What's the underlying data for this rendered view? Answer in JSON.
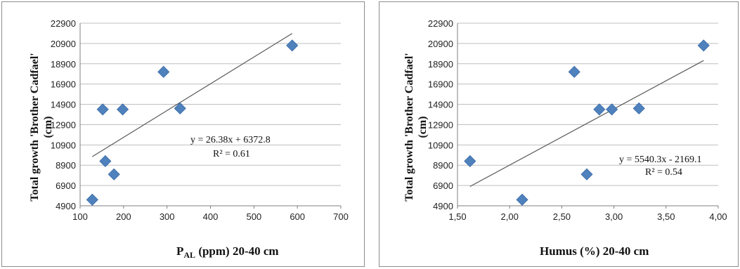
{
  "chart_data": [
    {
      "type": "scatter",
      "title": "",
      "xlabel": "P",
      "xlabel_sub": "AL",
      "xlabel_rest": " (ppm)  20-40 cm",
      "ylabel_line1": "Total growth 'Brother Cadfael'",
      "ylabel_line2": "(cm)",
      "xlim": [
        100,
        700
      ],
      "ylim": [
        4900,
        22900
      ],
      "x_ticks": [
        "100",
        "200",
        "300",
        "400",
        "500",
        "600",
        "700"
      ],
      "y_ticks": [
        "4900",
        "6900",
        "8900",
        "10900",
        "12900",
        "14900",
        "16900",
        "18900",
        "20900",
        "22900"
      ],
      "marker_color": "#4f81bd",
      "trend_color": "#595959",
      "points": [
        {
          "x": 128,
          "y": 5500
        },
        {
          "x": 152,
          "y": 14400
        },
        {
          "x": 158,
          "y": 9300
        },
        {
          "x": 178,
          "y": 8000
        },
        {
          "x": 198,
          "y": 14400
        },
        {
          "x": 292,
          "y": 18100
        },
        {
          "x": 330,
          "y": 14500
        },
        {
          "x": 588,
          "y": 20700
        }
      ],
      "trendline": {
        "slope": 26.38,
        "intercept": 6372.8,
        "x_start": 128,
        "x_end": 588
      },
      "equation": "y = 26.38x + 6372.8",
      "r2": "R² = 0.61"
    },
    {
      "type": "scatter",
      "title": "",
      "xlabel": "Humus (%)  20-40 cm",
      "ylabel_line1": "Total growth 'Brother Cadfael'",
      "ylabel_line2": "(cm)",
      "xlim": [
        1.5,
        4.0
      ],
      "ylim": [
        4900,
        22900
      ],
      "x_ticks": [
        "1,50",
        "2,00",
        "2,50",
        "3,00",
        "3,50",
        "4,00"
      ],
      "y_ticks": [
        "4900",
        "6900",
        "8900",
        "10900",
        "12900",
        "14900",
        "16900",
        "18900",
        "20900",
        "22900"
      ],
      "marker_color": "#4f81bd",
      "trend_color": "#595959",
      "points": [
        {
          "x": 1.62,
          "y": 9300
        },
        {
          "x": 2.12,
          "y": 5500
        },
        {
          "x": 2.62,
          "y": 18100
        },
        {
          "x": 2.74,
          "y": 8000
        },
        {
          "x": 2.86,
          "y": 14400
        },
        {
          "x": 2.98,
          "y": 14400
        },
        {
          "x": 3.24,
          "y": 14500
        },
        {
          "x": 3.86,
          "y": 20700
        }
      ],
      "trendline": {
        "slope": 5540.3,
        "intercept": -2169.1,
        "x_start": 1.62,
        "x_end": 3.86
      },
      "equation": "y = 5540.3x - 2169.1",
      "r2": "R² = 0.54"
    }
  ]
}
